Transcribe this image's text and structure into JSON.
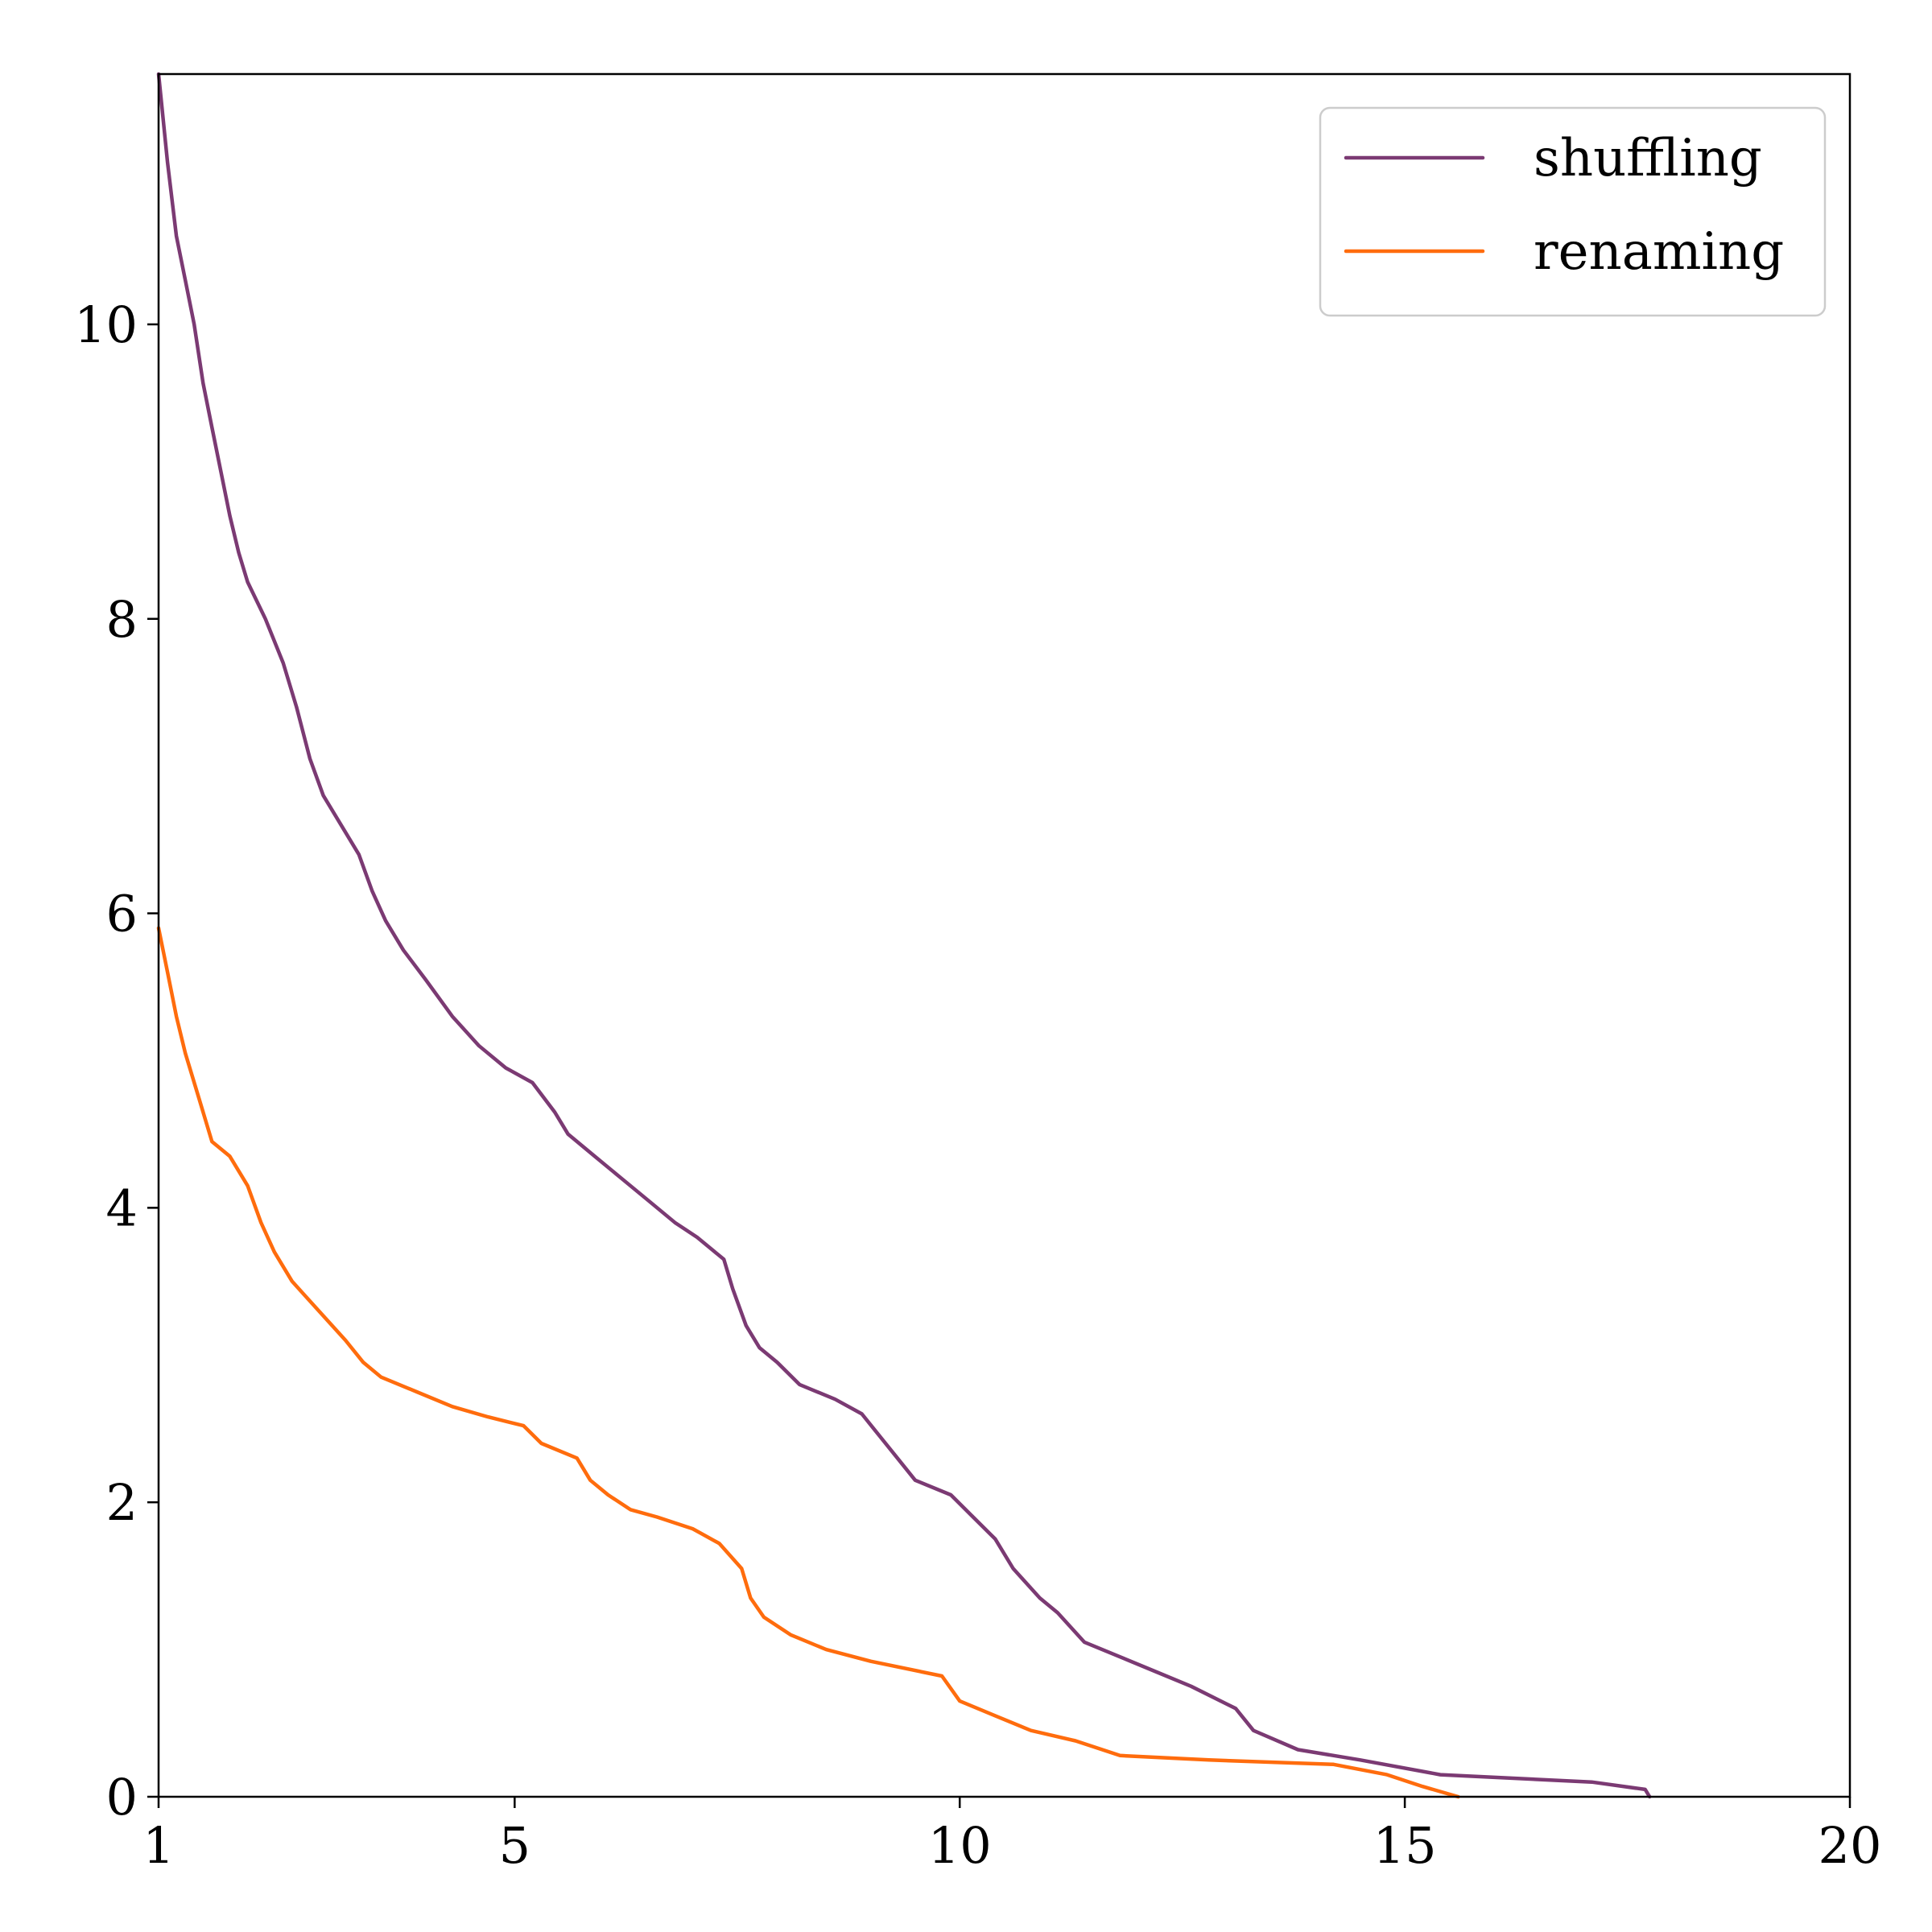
{
  "chart_data": {
    "type": "line",
    "title": "",
    "xlabel": "",
    "ylabel": "",
    "xlim": [
      1,
      20
    ],
    "ylim": [
      0,
      11.7
    ],
    "x_ticks": [
      1,
      5,
      10,
      15,
      20
    ],
    "y_ticks": [
      0,
      2,
      4,
      6,
      8,
      10
    ],
    "grid": false,
    "legend_position": "top-right",
    "series": [
      {
        "name": "shuffling",
        "color": "#7b3a73",
        "points": [
          [
            1.0,
            11.7
          ],
          [
            1.1,
            11.1
          ],
          [
            1.2,
            10.6
          ],
          [
            1.3,
            10.3
          ],
          [
            1.4,
            10.0
          ],
          [
            1.5,
            9.6
          ],
          [
            1.6,
            9.3
          ],
          [
            1.7,
            9.0
          ],
          [
            1.8,
            8.7
          ],
          [
            1.9,
            8.45
          ],
          [
            2.0,
            8.25
          ],
          [
            2.2,
            8.0
          ],
          [
            2.4,
            7.7
          ],
          [
            2.55,
            7.4
          ],
          [
            2.7,
            7.05
          ],
          [
            2.85,
            6.8
          ],
          [
            3.05,
            6.6
          ],
          [
            3.25,
            6.4
          ],
          [
            3.4,
            6.15
          ],
          [
            3.55,
            5.95
          ],
          [
            3.75,
            5.75
          ],
          [
            4.0,
            5.55
          ],
          [
            4.3,
            5.3
          ],
          [
            4.6,
            5.1
          ],
          [
            4.9,
            4.95
          ],
          [
            5.2,
            4.85
          ],
          [
            5.45,
            4.65
          ],
          [
            5.6,
            4.5
          ],
          [
            5.9,
            4.35
          ],
          [
            6.2,
            4.2
          ],
          [
            6.5,
            4.05
          ],
          [
            6.8,
            3.9
          ],
          [
            7.05,
            3.8
          ],
          [
            7.35,
            3.65
          ],
          [
            7.45,
            3.45
          ],
          [
            7.6,
            3.2
          ],
          [
            7.75,
            3.05
          ],
          [
            7.95,
            2.95
          ],
          [
            8.2,
            2.8
          ],
          [
            8.6,
            2.7
          ],
          [
            8.9,
            2.6
          ],
          [
            9.1,
            2.45
          ],
          [
            9.3,
            2.3
          ],
          [
            9.5,
            2.15
          ],
          [
            9.9,
            2.05
          ],
          [
            10.15,
            1.9
          ],
          [
            10.4,
            1.75
          ],
          [
            10.6,
            1.55
          ],
          [
            10.9,
            1.35
          ],
          [
            11.1,
            1.25
          ],
          [
            11.4,
            1.05
          ],
          [
            11.8,
            0.95
          ],
          [
            12.2,
            0.85
          ],
          [
            12.6,
            0.75
          ],
          [
            13.1,
            0.6
          ],
          [
            13.3,
            0.45
          ],
          [
            13.8,
            0.32
          ],
          [
            14.5,
            0.25
          ],
          [
            15.4,
            0.15
          ],
          [
            17.1,
            0.1
          ],
          [
            17.7,
            0.05
          ],
          [
            17.75,
            0.0
          ]
        ]
      },
      {
        "name": "renaming",
        "color": "#ff6c0d",
        "points": [
          [
            1.0,
            5.9
          ],
          [
            1.1,
            5.6
          ],
          [
            1.2,
            5.3
          ],
          [
            1.3,
            5.05
          ],
          [
            1.45,
            4.75
          ],
          [
            1.6,
            4.45
          ],
          [
            1.8,
            4.35
          ],
          [
            2.0,
            4.15
          ],
          [
            2.15,
            3.9
          ],
          [
            2.3,
            3.7
          ],
          [
            2.5,
            3.5
          ],
          [
            2.8,
            3.3
          ],
          [
            3.1,
            3.1
          ],
          [
            3.3,
            2.95
          ],
          [
            3.5,
            2.85
          ],
          [
            3.9,
            2.75
          ],
          [
            4.3,
            2.65
          ],
          [
            4.7,
            2.58
          ],
          [
            5.1,
            2.52
          ],
          [
            5.3,
            2.4
          ],
          [
            5.7,
            2.3
          ],
          [
            5.85,
            2.15
          ],
          [
            6.05,
            2.05
          ],
          [
            6.3,
            1.95
          ],
          [
            6.6,
            1.9
          ],
          [
            7.0,
            1.82
          ],
          [
            7.3,
            1.72
          ],
          [
            7.55,
            1.55
          ],
          [
            7.65,
            1.35
          ],
          [
            7.8,
            1.22
          ],
          [
            8.1,
            1.1
          ],
          [
            8.5,
            1.0
          ],
          [
            9.0,
            0.92
          ],
          [
            9.8,
            0.82
          ],
          [
            10.0,
            0.65
          ],
          [
            10.4,
            0.55
          ],
          [
            10.8,
            0.45
          ],
          [
            11.3,
            0.38
          ],
          [
            11.8,
            0.28
          ],
          [
            12.8,
            0.25
          ],
          [
            14.2,
            0.22
          ],
          [
            14.8,
            0.15
          ],
          [
            15.2,
            0.07
          ],
          [
            15.6,
            0.0
          ]
        ]
      }
    ]
  }
}
